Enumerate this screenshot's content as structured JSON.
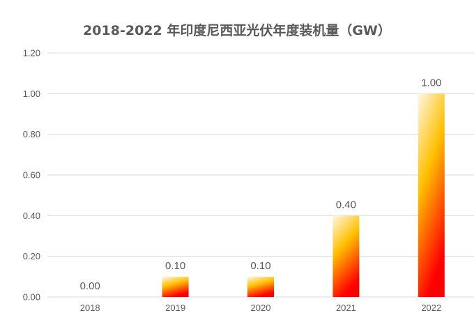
{
  "chart_data": {
    "type": "bar",
    "title": "2018-2022 年印度尼西亚光伏年度装机量（GW）",
    "categories": [
      "2018",
      "2019",
      "2020",
      "2021",
      "2022"
    ],
    "values": [
      0.0,
      0.1,
      0.1,
      0.4,
      1.0
    ],
    "data_labels": [
      "0.00",
      "0.10",
      "0.10",
      "0.40",
      "1.00"
    ],
    "xlabel": "",
    "ylabel": "",
    "ylim": [
      0,
      1.2
    ],
    "y_ticks": [
      "0.00",
      "0.20",
      "0.40",
      "0.60",
      "0.80",
      "1.00",
      "1.20"
    ],
    "grid": true,
    "legend": "none",
    "colors": {
      "bar_top": "#fff7e6",
      "bar_mid": "#ffc000",
      "bar_bottom": "#ff0000",
      "grid": "#d9d9d9",
      "text": "#595959"
    }
  }
}
